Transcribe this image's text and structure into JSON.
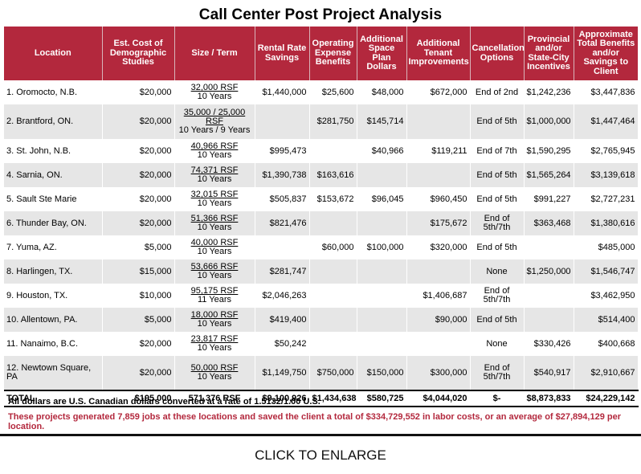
{
  "title": "Call Center Post Project Analysis",
  "headers": {
    "location": "Location",
    "est_cost": "Est. Cost of Demographic Studies",
    "size_term": "Size / Term",
    "rental": "Rental Rate Savings",
    "operating": "Operating Expense Benefits",
    "space_plan": "Additional Space Plan Dollars",
    "tenant": "Additional Tenant Improvements",
    "cancellation": "Cancellation Options",
    "incentives": "Provincial and/or State-City Incentives",
    "total_benefits": "Approximate Total Benefits and/or Savings to Client"
  },
  "rows": [
    {
      "location": "1. Oromocto, N.B.",
      "est_cost": "$20,000",
      "size": "32,000 RSF",
      "term": "10 Years",
      "rental": "$1,440,000",
      "operating": "$25,600",
      "space_plan": "$48,000",
      "tenant": "$672,000",
      "cancellation": "End of 2nd",
      "incentives": "$1,242,236",
      "total": "$3,447,836"
    },
    {
      "location": "2. Brantford, ON.",
      "est_cost": "$20,000",
      "size": "35,000 / 25,000 RSF",
      "term": "10 Years / 9 Years",
      "rental": "",
      "operating": "$281,750",
      "space_plan": "$145,714",
      "tenant": "",
      "cancellation": "End of 5th",
      "incentives": "$1,000,000",
      "total": "$1,447,464"
    },
    {
      "location": "3. St. John, N.B.",
      "est_cost": "$20,000",
      "size": "40,966 RSF",
      "term": "10 Years",
      "rental": "$995,473",
      "operating": "",
      "space_plan": "$40,966",
      "tenant": "$119,211",
      "cancellation": "End of 7th",
      "incentives": "$1,590,295",
      "total": "$2,765,945"
    },
    {
      "location": "4. Sarnia, ON.",
      "est_cost": "$20,000",
      "size": "74,371 RSF",
      "term": "10 Years",
      "rental": "$1,390,738",
      "operating": "$163,616",
      "space_plan": "",
      "tenant": "",
      "cancellation": "End of 5th",
      "incentives": "$1,565,264",
      "total": "$3,139,618"
    },
    {
      "location": "5. Sault Ste Marie",
      "est_cost": "$20,000",
      "size": "32,015 RSF",
      "term": "10 Years",
      "rental": "$505,837",
      "operating": "$153,672",
      "space_plan": "$96,045",
      "tenant": "$960,450",
      "cancellation": "End of 5th",
      "incentives": "$991,227",
      "total": "$2,727,231"
    },
    {
      "location": "6. Thunder Bay, ON.",
      "est_cost": "$20,000",
      "size": "51,366 RSF",
      "term": "10 Years",
      "rental": "$821,476",
      "operating": "",
      "space_plan": "",
      "tenant": "$175,672",
      "cancellation": "End of 5th/7th",
      "incentives": "$363,468",
      "total": "$1,380,616"
    },
    {
      "location": "7. Yuma, AZ.",
      "est_cost": "$5,000",
      "size": "40,000 RSF",
      "term": "10 Years",
      "rental": "",
      "operating": "$60,000",
      "space_plan": "$100,000",
      "tenant": "$320,000",
      "cancellation": "End of 5th",
      "incentives": "",
      "total": "$485,000"
    },
    {
      "location": "8. Harlingen, TX.",
      "est_cost": "$15,000",
      "size": "53,666 RSF",
      "term": "10 Years",
      "rental": "$281,747",
      "operating": "",
      "space_plan": "",
      "tenant": "",
      "cancellation": "None",
      "incentives": "$1,250,000",
      "total": "$1,546,747"
    },
    {
      "location": "9. Houston, TX.",
      "est_cost": "$10,000",
      "size": "95,175 RSF",
      "term": "11 Years",
      "rental": "$2,046,263",
      "operating": "",
      "space_plan": "",
      "tenant": "$1,406,687",
      "cancellation": "End of 5th/7th",
      "incentives": "",
      "total": "$3,462,950"
    },
    {
      "location": "10. Allentown, PA.",
      "est_cost": "$5,000",
      "size": "18,000 RSF",
      "term": "10 Years",
      "rental": "$419,400",
      "operating": "",
      "space_plan": "",
      "tenant": "$90,000",
      "cancellation": "End of 5th",
      "incentives": "",
      "total": "$514,400"
    },
    {
      "location": "11. Nanaimo, B.C.",
      "est_cost": "$20,000",
      "size": "23,817 RSF",
      "term": "10 Years",
      "rental": "$50,242",
      "operating": "",
      "space_plan": "",
      "tenant": "",
      "cancellation": "None",
      "incentives": "$330,426",
      "total": "$400,668"
    },
    {
      "location": "12. Newtown Square, PA",
      "est_cost": "$20,000",
      "size": "50,000 RSF",
      "term": "10 Years",
      "rental": "$1,149,750",
      "operating": "$750,000",
      "space_plan": "$150,000",
      "tenant": "$300,000",
      "cancellation": "End of 5th/7th",
      "incentives": "$540,917",
      "total": "$2,910,667"
    }
  ],
  "total": {
    "label": "TOTAL",
    "est_cost": "$195,000",
    "size": "571,376 RSF",
    "rental": "$9,100,926",
    "operating": "$1,434,638",
    "space_plan": "$580,725",
    "tenant": "$4,044,020",
    "cancellation": "$-",
    "incentives": "$8,873,833",
    "total": "$24,229,142"
  },
  "notes": {
    "currency": "All dollars are U.S. Canadian dollars converted at a rate of 1.5132/1.00 U.S.",
    "jobs": "These projects generated 7,859 jobs at these locations and saved the client a total of $334,729,552 in labor costs, or an average of $27,894,129 per location."
  },
  "enlarge_label": "CLICK TO ENLARGE",
  "colors": {
    "header_bg": "#b3283d",
    "alt_row": "#e6e6e6",
    "note_red": "#b3283d"
  }
}
